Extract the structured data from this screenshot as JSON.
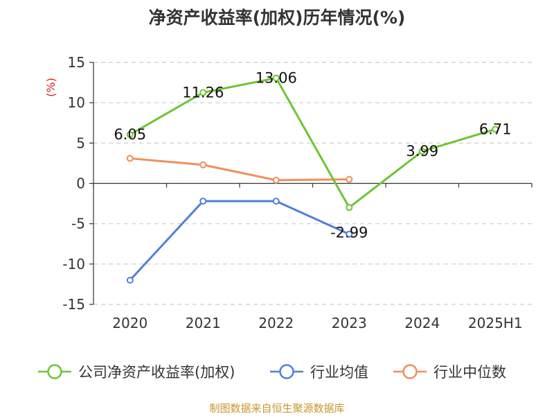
{
  "chart_data": {
    "type": "line",
    "title": "净资产收益率(加权)历年情况(%)",
    "ylabel": "(%)",
    "categories": [
      "2020",
      "2021",
      "2022",
      "2023",
      "2024",
      "2025H1"
    ],
    "ylim": [
      -15,
      15
    ],
    "yticks": [
      15,
      10,
      5,
      0,
      -5,
      -10,
      -15
    ],
    "grid": true,
    "legend_position": "bottom",
    "series": [
      {
        "name": "公司净资产收益率(加权)",
        "color": "#6cc531",
        "values": [
          6.05,
          11.26,
          13.06,
          -2.99,
          3.99,
          6.71
        ],
        "labels": [
          "6.05",
          "11.26",
          "13.06",
          "-2.99",
          "3.99",
          "6.71"
        ]
      },
      {
        "name": "行业均值",
        "color": "#4f7fdb",
        "values": [
          -12.0,
          -2.2,
          -2.2,
          -6.3,
          null,
          null
        ]
      },
      {
        "name": "行业中位数",
        "color": "#f28e59",
        "values": [
          3.1,
          2.3,
          0.4,
          0.5,
          null,
          null
        ]
      }
    ]
  },
  "source": "制图数据来自恒生聚源数据库"
}
